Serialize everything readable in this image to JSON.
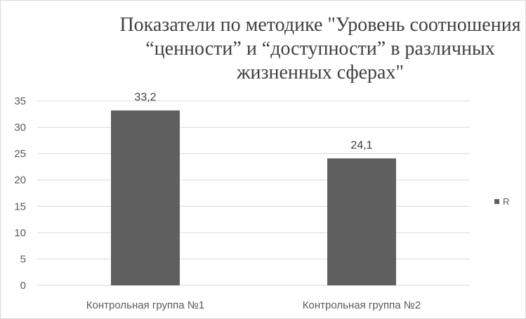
{
  "chart_data": {
    "type": "bar",
    "title": "Показатели по методике \"Уровень соотношения “ценности” и “доступности” в различных жизненных сферах\"",
    "categories": [
      "Контрольная группа №1",
      "Контрольная группа №2"
    ],
    "series": [
      {
        "name": "R",
        "values": [
          33.2,
          24.1
        ],
        "labels": [
          "33,2",
          "24,1"
        ],
        "color": "#5f5f5f"
      }
    ],
    "ylim": [
      0,
      35
    ],
    "yticks": [
      "0",
      "5",
      "10",
      "15",
      "20",
      "25",
      "30",
      "35"
    ],
    "grid": true,
    "legend": "right",
    "colors": {
      "gridline": "#d9d9d9",
      "text": "#595959"
    }
  }
}
